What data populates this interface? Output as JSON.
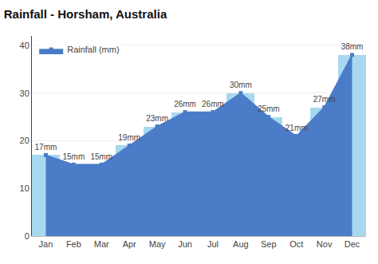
{
  "chart_data": {
    "type": "bar",
    "title": "Rainfall - Horsham, Australia",
    "categories": [
      "Jan",
      "Feb",
      "Mar",
      "Apr",
      "May",
      "Jun",
      "Jul",
      "Aug",
      "Sep",
      "Oct",
      "Nov",
      "Dec"
    ],
    "series": [
      {
        "type": "bar",
        "color": "#A8D8F0",
        "values": [
          17,
          15,
          15,
          19,
          23,
          26,
          26,
          30,
          25,
          21,
          27,
          38
        ]
      },
      {
        "name": "Rainfall (mm)",
        "type": "area",
        "color": "#4A7CC7",
        "marker": "square",
        "values": [
          17,
          15,
          15,
          19,
          23,
          26,
          26,
          30,
          25,
          21,
          27,
          38
        ],
        "value_labels": [
          "17mm",
          "15mm",
          "15mm",
          "19mm",
          "23mm",
          "26mm",
          "26mm",
          "30mm",
          "25mm",
          "21mm",
          "27mm",
          "38mm"
        ]
      }
    ],
    "data_labels": true,
    "ylim": [
      0,
      42
    ],
    "yticks": [
      0,
      10,
      20,
      30,
      40
    ],
    "grid": true,
    "legend": "upper left"
  }
}
